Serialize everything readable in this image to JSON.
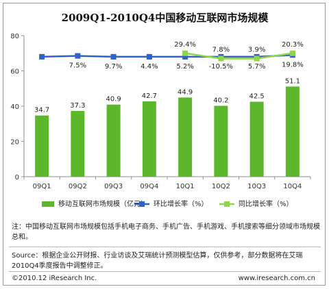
{
  "chart_data": {
    "type": "bar",
    "title": "2009Q1-2010Q4中国移动互联网市场规模",
    "categories": [
      "09Q1",
      "09Q2",
      "09Q3",
      "09Q4",
      "10Q1",
      "10Q2",
      "10Q3",
      "10Q4"
    ],
    "ylim": [
      0,
      80
    ],
    "yticks": [
      0,
      20,
      40,
      60,
      80
    ],
    "grid": false,
    "legend_placement": "bottom",
    "series": [
      {
        "name": "移动互联网市场规模（亿元）",
        "type": "bar",
        "values": [
          34.7,
          37.3,
          40.9,
          42.7,
          44.9,
          40.2,
          42.5,
          51.1
        ],
        "labels": [
          "34.7",
          "37.3",
          "40.9",
          "42.7",
          "44.9",
          "40.2",
          "42.5",
          "51.1"
        ],
        "color": "#5cb82a"
      },
      {
        "name": "环比增长率（%）",
        "type": "line",
        "values": [
          68,
          68.5,
          68,
          68,
          68,
          68,
          68,
          69
        ],
        "labels": [
          "",
          "7.5%",
          "9.7%",
          "4.4%",
          "5.2%",
          "-10.5%",
          "5.7%",
          "19.8%"
        ],
        "color": "#2e63c7"
      },
      {
        "name": "同比增长率（%）",
        "type": "line",
        "values": [
          null,
          null,
          null,
          null,
          70,
          67,
          67,
          70
        ],
        "labels": [
          "",
          "",
          "",
          "",
          "29.4%",
          "7.8%",
          "3.9%",
          "20.3%"
        ],
        "color": "#8fd64a"
      }
    ]
  },
  "footer": {
    "note": "注：中国移动互联网市场规模包括手机电子商务、手机广告、手机游戏、手机搜索等细分领域市场规模总和。",
    "source": "Source：根据企业公开财报、行业访谈及艾瑞统计预测模型估算，仅供参考，部分数据将在艾瑞2010Q4季度报告中调整修正。",
    "copyright": "©2010.12 iResearch Inc.",
    "url": "www.iresearch.com.cn"
  }
}
